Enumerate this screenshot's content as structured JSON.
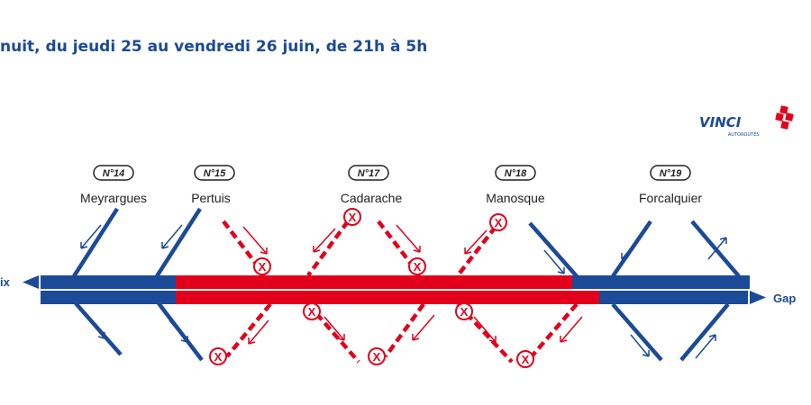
{
  "header": {
    "title": "nuit, du jeudi 25 au vendredi 26 juin, de 21h à 5h"
  },
  "logo": {
    "brand": "VINCI",
    "sub": "AUTOROUTES"
  },
  "direction_left": "ix",
  "direction_right": "Gap",
  "exits": [
    {
      "badge": "N°14",
      "name": "Meyrargues"
    },
    {
      "badge": "N°15",
      "name": "Pertuis"
    },
    {
      "badge": "N°17",
      "name": "Cadarache"
    },
    {
      "badge": "N°18",
      "name": "Manosque"
    },
    {
      "badge": "N°19",
      "name": "Forcalquier"
    }
  ],
  "closed_marker": "X",
  "colors": {
    "open": "#1b4a97",
    "closed": "#e3001b",
    "title": "#1b4a97",
    "logo_red": "#e3001b"
  }
}
